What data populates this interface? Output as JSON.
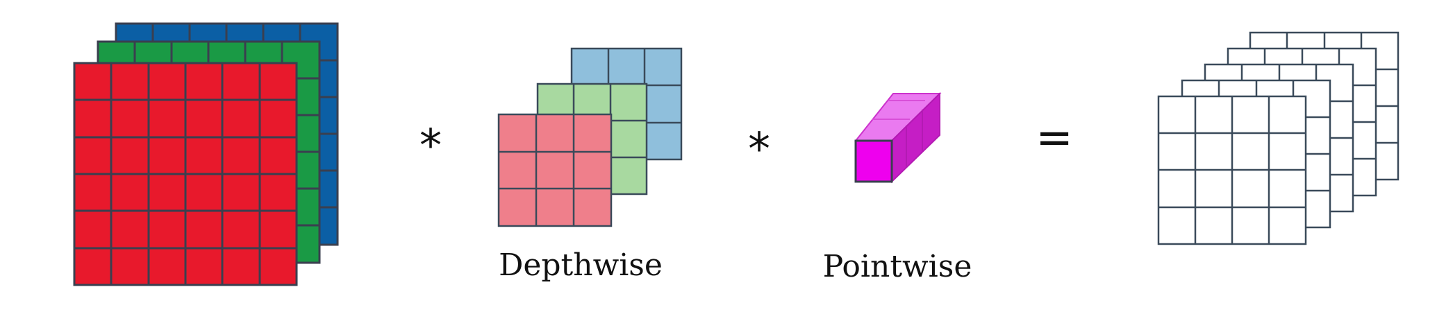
{
  "diagram": {
    "operators": {
      "multiply_1": "*",
      "multiply_2": "*",
      "equals": "="
    },
    "labels": {
      "depthwise": "Depthwise",
      "pointwise": "Pointwise"
    },
    "colors": {
      "input_red": "#e8192c",
      "input_green": "#1a9a45",
      "input_blue": "#0b5fa5",
      "depthwise_red": "#ef7f8b",
      "depthwise_green": "#a8d9a0",
      "depthwise_blue": "#8fbfdc",
      "pointwise_magenta": "#e816e8",
      "grid_line": "#3a3f4f",
      "output_line": "#3a4a5a"
    },
    "input_volume": {
      "layers": 3,
      "grid": "6x6"
    },
    "depthwise_filters": {
      "layers": 3,
      "grid": "3x3"
    },
    "pointwise_filter": {
      "shape": "1x1xC"
    },
    "output_volume": {
      "layers": 5,
      "grid": "4x4"
    }
  }
}
